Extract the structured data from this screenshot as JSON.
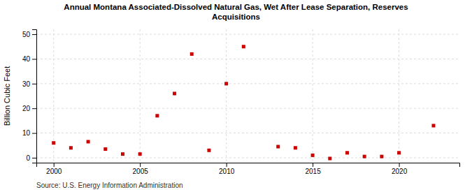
{
  "chart_data": {
    "type": "scatter",
    "title": "Annual Montana Associated-Dissolved Natural Gas, Wet After Lease Separation, Reserves\nAcquisitions",
    "ylabel": "Billion Cubic Feet",
    "annotation": "Source: U.S. Energy Information Administration",
    "x": [
      2000,
      2001,
      2002,
      2003,
      2004,
      2005,
      2006,
      2007,
      2008,
      2009,
      2010,
      2011,
      2013,
      2014,
      2015,
      2016,
      2017,
      2018,
      2019,
      2020,
      2022
    ],
    "values": [
      6,
      4,
      6.5,
      3.5,
      1.5,
      1.5,
      17,
      26,
      42,
      3,
      30,
      45,
      4.5,
      4,
      1,
      -0.3,
      2,
      0.5,
      0.5,
      2,
      13
    ],
    "color": "#cc0000",
    "marker": "square",
    "xlim": [
      1999,
      2023.5
    ],
    "xticks": [
      2000,
      2005,
      2010,
      2015,
      2020
    ],
    "ylim": [
      -2,
      52
    ],
    "yticks": [
      0,
      10,
      20,
      30,
      40,
      50
    ],
    "grid": true
  }
}
